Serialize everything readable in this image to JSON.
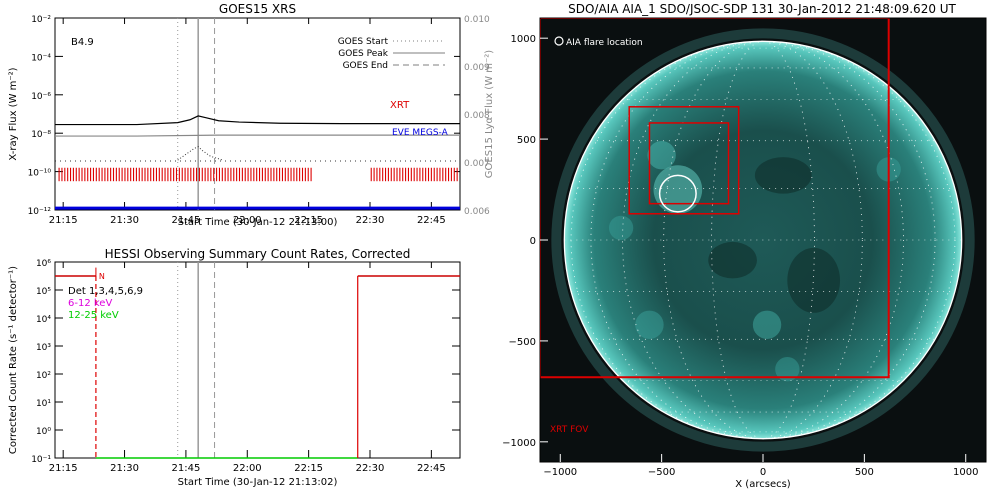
{
  "chart_data": [
    {
      "type": "line",
      "title": "GOES15 XRS",
      "xlabel": "Start Time (30-Jan-12 21:13:00)",
      "ylabel": "X-ray Flux (W m⁻²)",
      "ylabel_right": "GOES15 Lyα Flux (W m⁻²)",
      "ylim_exp": [
        -12,
        -2
      ],
      "y_tick_exp": [
        -2,
        -4,
        -6,
        -8,
        -10,
        -12
      ],
      "y_tick_labels": [
        "10⁻²",
        "10⁻⁴",
        "10⁻⁶",
        "10⁻⁸",
        "10⁻¹⁰",
        "10⁻¹²"
      ],
      "yright_lim": [
        0.006,
        0.01
      ],
      "yright_ticks": [
        "0.010",
        "0.009",
        "0.008",
        "0.007",
        "0.006"
      ],
      "x_ticks": [
        "21:15",
        "21:30",
        "21:45",
        "22:00",
        "22:15",
        "22:30",
        "22:45"
      ],
      "x_tick_minutes": [
        2,
        17,
        32,
        47,
        62,
        77,
        92
      ],
      "xlim_minutes": [
        0,
        99
      ],
      "class_label": "B4.9",
      "legend": [
        {
          "label": "GOES Start",
          "style": "dotted"
        },
        {
          "label": "GOES Peak",
          "style": "solid"
        },
        {
          "label": "GOES End",
          "style": "dashed"
        }
      ],
      "event_lines_minutes": {
        "start": 30,
        "peak": 35,
        "end": 39
      },
      "annotations": [
        "XRT",
        "EVE MEGS-A"
      ],
      "series": [
        {
          "name": "XRT",
          "color": "#000000",
          "x": [
            0,
            20,
            30,
            33,
            35,
            37,
            40,
            45,
            55,
            70,
            85,
            99
          ],
          "y_exp": [
            -7.55,
            -7.55,
            -7.45,
            -7.3,
            -7.1,
            -7.2,
            -7.35,
            -7.42,
            -7.48,
            -7.5,
            -7.5,
            -7.5
          ]
        },
        {
          "name": "Lyα",
          "color": "#888888",
          "x": [
            0,
            20,
            40,
            60,
            80,
            99
          ],
          "y_exp": [
            -8.15,
            -8.15,
            -8.1,
            -8.1,
            -8.1,
            -8.1
          ]
        },
        {
          "name": "EVE MEGS-A",
          "color": "#0000dd",
          "x": [
            0,
            99
          ],
          "y_exp": [
            -11.9,
            -11.9
          ]
        }
      ]
    },
    {
      "type": "line",
      "title": "HESSI Observing Summary Count Rates, Corrected",
      "xlabel": "Start Time (30-Jan-12 21:13:02)",
      "ylabel": "Corrected Count Rate (s⁻¹ detector⁻¹)",
      "ylim_exp": [
        -1,
        6
      ],
      "y_tick_exp": [
        6,
        5,
        4,
        3,
        2,
        1,
        0,
        -1
      ],
      "y_tick_labels": [
        "10⁶",
        "10⁵",
        "10⁴",
        "10³",
        "10²",
        "10¹",
        "10⁰",
        "10⁻¹"
      ],
      "x_ticks": [
        "21:15",
        "21:30",
        "21:45",
        "22:00",
        "22:15",
        "22:30",
        "22:45"
      ],
      "x_tick_minutes": [
        2,
        17,
        32,
        47,
        62,
        77,
        92
      ],
      "xlim_minutes": [
        0,
        99
      ],
      "legend": [
        {
          "label": "Det 1,3,4,5,6,9",
          "color": "#000000"
        },
        {
          "label": "6-12 keV",
          "color": "#dd00dd"
        },
        {
          "label": "12-25 keV",
          "color": "#00cc00"
        }
      ],
      "night_marker": "N",
      "series": [
        {
          "name": "6-12 keV",
          "color": "#cc0000",
          "segments": [
            {
              "x": [
                0,
                10
              ],
              "y_exp": 5.5
            },
            {
              "x": [
                74,
                99
              ],
              "y_exp": 5.5
            }
          ]
        },
        {
          "name": "12-25 keV",
          "color": "#00cc00",
          "segments": [
            {
              "x": [
                10,
                74
              ],
              "y_exp": -1
            }
          ]
        }
      ],
      "event_lines_minutes": {
        "start": 30,
        "peak": 35,
        "end": 39
      }
    },
    {
      "type": "heatmap",
      "title": "SDO/AIA AIA_1 SDO/JSOC-SDP 131 30-Jan-2012 21:48:09.620 UT",
      "xlabel": "X (arcsecs)",
      "ylabel": "",
      "xlim": [
        -1100,
        1100
      ],
      "ylim": [
        -1100,
        1100
      ],
      "x_ticks": [
        -1000,
        -500,
        0,
        500,
        1000
      ],
      "y_ticks": [
        1000,
        500,
        0,
        -500,
        -1000
      ],
      "legend_label": "AIA flare location",
      "fov_label": "XRT FOV",
      "disk_radius": 980,
      "flare_location": {
        "x": -420,
        "y": 230,
        "r": 90
      },
      "boxes": [
        {
          "name": "xrt-fov",
          "x": [
            -1100,
            620
          ],
          "y": [
            -680,
            1100
          ]
        },
        {
          "name": "outer-box",
          "x": [
            -660,
            -120
          ],
          "y": [
            130,
            660
          ]
        },
        {
          "name": "inner-box",
          "x": [
            -560,
            -170
          ],
          "y": [
            180,
            580
          ]
        }
      ]
    }
  ],
  "colors": {
    "red": "#dd0000",
    "blue": "#0000dd",
    "disk": "#3fb8b0",
    "dark": "#0a0f10"
  }
}
